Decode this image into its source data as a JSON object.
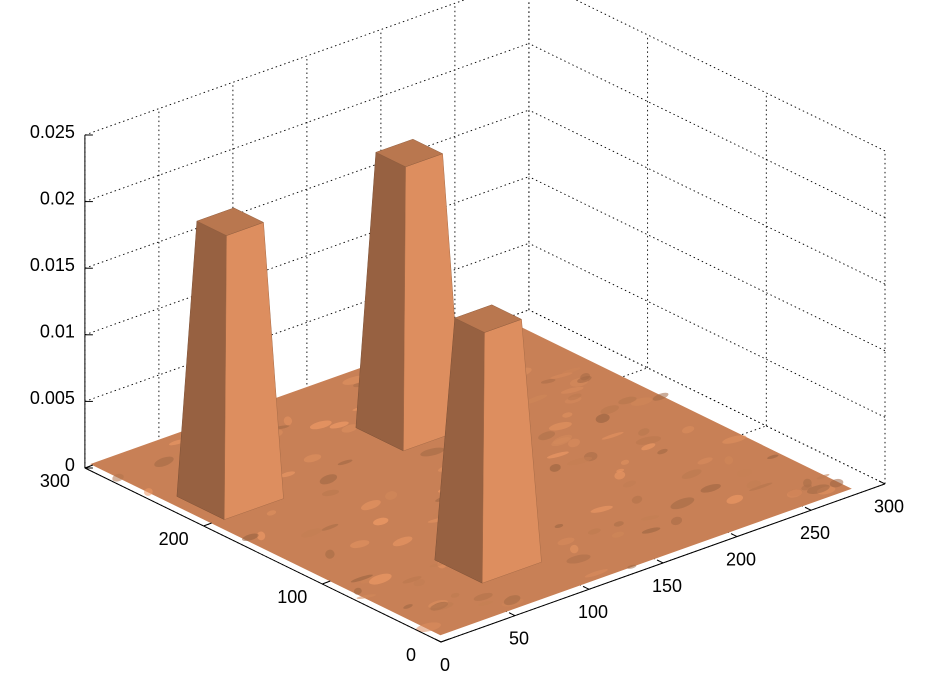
{
  "chart_data": {
    "type": "surface",
    "title": "",
    "xlabel": "",
    "ylabel": "",
    "zlabel": "",
    "grid": true,
    "xlim": [
      0,
      300
    ],
    "ylim": [
      0,
      300
    ],
    "zlim": [
      0,
      0.025
    ],
    "x_ticks": [
      "0",
      "50",
      "100",
      "150",
      "200",
      "250",
      "300"
    ],
    "y_ticks": [
      "0",
      "100",
      "200",
      "300"
    ],
    "z_ticks": [
      "0",
      "0.005",
      "0.01",
      "0.015",
      "0.02",
      "0.025"
    ],
    "x_tick_values": [
      0,
      50,
      100,
      150,
      200,
      250,
      300
    ],
    "y_tick_values": [
      0,
      100,
      200,
      300
    ],
    "z_tick_values": [
      0,
      0.005,
      0.01,
      0.015,
      0.02,
      0.025
    ],
    "surface_color": "#D2875A",
    "base_level": 0.0003,
    "peaks": [
      {
        "name": "",
        "x": 30,
        "y": 215,
        "height": 0.021,
        "base_width": 40,
        "top_width": 25
      },
      {
        "name": "",
        "x": 155,
        "y": 220,
        "height": 0.021,
        "base_width": 40,
        "top_width": 25
      },
      {
        "name": "",
        "x": 80,
        "y": 60,
        "height": 0.0185,
        "base_width": 40,
        "top_width": 25
      }
    ]
  }
}
